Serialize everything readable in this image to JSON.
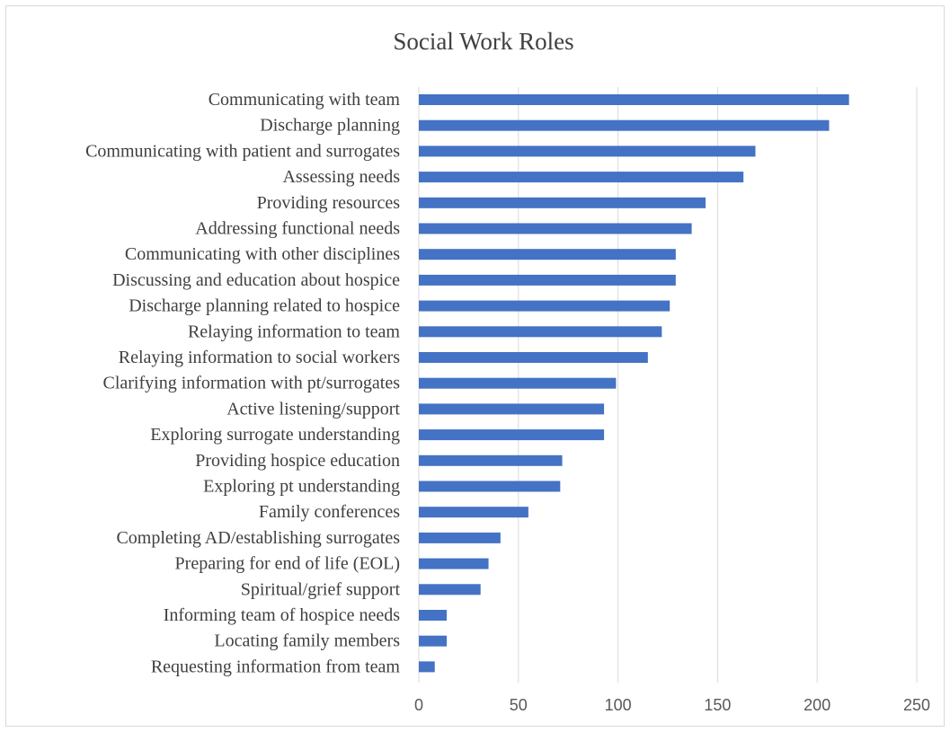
{
  "chart_data": {
    "type": "bar",
    "orientation": "horizontal",
    "title": "Social Work Roles",
    "xlabel": "",
    "ylabel": "",
    "categories": [
      "Communicating with team",
      "Discharge planning",
      "Communicating with patient and surrogates",
      "Assessing needs",
      "Providing resources",
      "Addressing functional needs",
      "Communicating with other disciplines",
      "Discussing and education about hospice",
      "Discharge planning related to hospice",
      "Relaying information to team",
      "Relaying information to social workers",
      "Clarifying information with pt/surrogates",
      "Active listening/support",
      "Exploring surrogate understanding",
      "Providing hospice education",
      "Exploring pt understanding",
      "Family conferences",
      "Completing AD/establishing surrogates",
      "Preparing for end of life (EOL)",
      "Spiritual/grief support",
      "Informing team of hospice needs ",
      "Locating family members",
      "Requesting information from team"
    ],
    "values": [
      216,
      206,
      169,
      163,
      144,
      137,
      129,
      129,
      126,
      122,
      115,
      99,
      93,
      93,
      72,
      71,
      55,
      41,
      35,
      31,
      14,
      14,
      8
    ],
    "xlim": [
      0,
      250
    ],
    "xticks": [
      "0",
      "50",
      "100",
      "150",
      "200",
      "250"
    ],
    "grid": true,
    "legend": "none",
    "bar_color": "#4472c4"
  }
}
